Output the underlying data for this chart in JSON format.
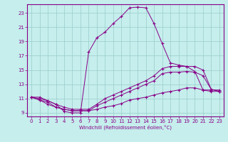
{
  "xlabel": "Windchill (Refroidissement éolien,°C)",
  "background_color": "#c5eeec",
  "line_color": "#880088",
  "grid_color": "#99cccc",
  "xlim": [
    -0.5,
    23.5
  ],
  "ylim": [
    8.5,
    24.2
  ],
  "yticks": [
    9,
    11,
    13,
    15,
    17,
    19,
    21,
    23
  ],
  "xticks": [
    0,
    1,
    2,
    3,
    4,
    5,
    6,
    7,
    8,
    9,
    10,
    11,
    12,
    13,
    14,
    15,
    16,
    17,
    18,
    19,
    20,
    21,
    22,
    23
  ],
  "series": [
    {
      "x": [
        0,
        1,
        2,
        3,
        4,
        5,
        6,
        7,
        8,
        9,
        10,
        11,
        12,
        13,
        14,
        15,
        16,
        17,
        18,
        19,
        20,
        21,
        22,
        23
      ],
      "y": [
        11.2,
        11.2,
        10.7,
        10.2,
        9.2,
        9.0,
        9.0,
        17.5,
        19.5,
        20.3,
        21.5,
        22.5,
        23.7,
        23.8,
        23.7,
        21.5,
        18.7,
        16.0,
        15.7,
        15.5,
        14.8,
        12.2,
        12.0,
        12.0
      ]
    },
    {
      "x": [
        0,
        1,
        2,
        3,
        4,
        5,
        6,
        7,
        8,
        9,
        10,
        11,
        12,
        13,
        14,
        15,
        16,
        17,
        18,
        19,
        20,
        21,
        22,
        23
      ],
      "y": [
        11.2,
        11.0,
        10.7,
        10.2,
        9.8,
        9.5,
        9.5,
        9.5,
        10.2,
        11.0,
        11.5,
        12.0,
        12.5,
        13.0,
        13.5,
        14.2,
        15.2,
        15.5,
        15.5,
        15.5,
        15.5,
        15.0,
        12.3,
        12.0
      ]
    },
    {
      "x": [
        0,
        1,
        2,
        3,
        4,
        5,
        6,
        7,
        8,
        9,
        10,
        11,
        12,
        13,
        14,
        15,
        16,
        17,
        18,
        19,
        20,
        21,
        22,
        23
      ],
      "y": [
        11.2,
        10.8,
        10.2,
        9.8,
        9.5,
        9.3,
        9.3,
        9.3,
        10.0,
        10.5,
        11.0,
        11.5,
        12.0,
        12.5,
        13.0,
        13.5,
        14.5,
        14.7,
        14.7,
        14.8,
        14.7,
        14.2,
        12.3,
        12.0
      ]
    },
    {
      "x": [
        0,
        1,
        2,
        3,
        4,
        5,
        6,
        7,
        8,
        9,
        10,
        11,
        12,
        13,
        14,
        15,
        16,
        17,
        18,
        19,
        20,
        21,
        22,
        23
      ],
      "y": [
        11.2,
        10.8,
        10.5,
        9.8,
        9.5,
        9.3,
        9.3,
        9.3,
        9.5,
        9.8,
        10.0,
        10.3,
        10.8,
        11.0,
        11.2,
        11.5,
        11.8,
        12.0,
        12.2,
        12.5,
        12.5,
        12.2,
        12.2,
        12.2
      ]
    }
  ]
}
